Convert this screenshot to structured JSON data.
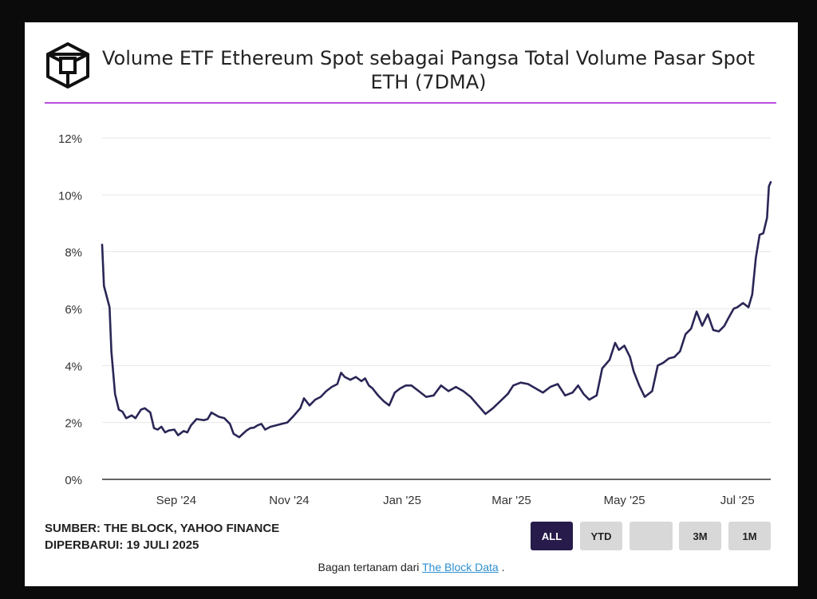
{
  "title": "Volume ETF Ethereum Spot sebagai Pangsa Total Volume Pasar Spot ETH (7DMA)",
  "footer": {
    "source": "SUMBER: THE BLOCK, YAHOO FINANCE",
    "updated": "DIPERBARUI: 19 JULI 2025",
    "embed_prefix": "Bagan tertanam dari",
    "embed_link": "The Block Data",
    "embed_suffix": "."
  },
  "range_buttons": [
    {
      "label": "ALL",
      "active": true
    },
    {
      "label": "YTD",
      "active": false
    },
    {
      "label": "",
      "active": false
    },
    {
      "label": "3M",
      "active": false
    },
    {
      "label": "1M",
      "active": false
    }
  ],
  "colors": {
    "line": "#2a2656",
    "accent_rule": "#b94fe0",
    "active_button": "#261b4b",
    "grid": "#e6e6e6"
  },
  "chart_data": {
    "type": "line",
    "title": "Volume ETF Ethereum Spot sebagai Pangsa Total Volume Pasar Spot ETH (7DMA)",
    "xlabel": "",
    "ylabel": "",
    "ylim": [
      0,
      12
    ],
    "y_ticks": [
      0,
      2,
      4,
      6,
      8,
      10,
      12
    ],
    "y_tick_labels": [
      "0%",
      "2%",
      "4%",
      "6%",
      "8%",
      "10%",
      "12%"
    ],
    "x_range": [
      "2024-07-23",
      "2025-07-19"
    ],
    "x_ticks": [
      "2024-09-01",
      "2024-11-01",
      "2025-01-01",
      "2025-03-01",
      "2025-05-01",
      "2025-07-01"
    ],
    "x_tick_labels": [
      "Sep '24",
      "Nov '24",
      "Jan '25",
      "Mar '25",
      "May '25",
      "Jul '25"
    ],
    "grid": true,
    "series": [
      {
        "x": [
          "2024-07-23",
          "2024-07-24",
          "2024-07-27",
          "2024-07-28",
          "2024-07-30",
          "2024-08-01",
          "2024-08-03",
          "2024-08-05",
          "2024-08-08",
          "2024-08-10",
          "2024-08-13",
          "2024-08-15",
          "2024-08-18",
          "2024-08-20",
          "2024-08-22",
          "2024-08-24",
          "2024-08-26",
          "2024-08-28",
          "2024-08-31",
          "2024-09-02",
          "2024-09-05",
          "2024-09-07",
          "2024-09-09",
          "2024-09-12",
          "2024-09-14",
          "2024-09-16",
          "2024-09-18",
          "2024-09-20",
          "2024-09-24",
          "2024-09-27",
          "2024-09-30",
          "2024-10-02",
          "2024-10-05",
          "2024-10-07",
          "2024-10-09",
          "2024-10-11",
          "2024-10-13",
          "2024-10-15",
          "2024-10-17",
          "2024-10-19",
          "2024-10-22",
          "2024-10-25",
          "2024-10-28",
          "2024-10-31",
          "2024-11-03",
          "2024-11-05",
          "2024-11-07",
          "2024-11-09",
          "2024-11-12",
          "2024-11-15",
          "2024-11-18",
          "2024-11-21",
          "2024-11-24",
          "2024-11-27",
          "2024-11-29",
          "2024-12-01",
          "2024-12-04",
          "2024-12-07",
          "2024-12-10",
          "2024-12-12",
          "2024-12-14",
          "2024-12-16",
          "2024-12-19",
          "2024-12-22",
          "2024-12-25",
          "2024-12-28",
          "2024-12-31",
          "2025-01-03",
          "2025-01-06",
          "2025-01-10",
          "2025-01-14",
          "2025-01-18",
          "2025-01-22",
          "2025-01-26",
          "2025-01-30",
          "2025-02-03",
          "2025-02-07",
          "2025-02-11",
          "2025-02-15",
          "2025-02-19",
          "2025-02-23",
          "2025-02-27",
          "2025-03-02",
          "2025-03-06",
          "2025-03-10",
          "2025-03-14",
          "2025-03-18",
          "2025-03-22",
          "2025-03-26",
          "2025-03-30",
          "2025-04-03",
          "2025-04-06",
          "2025-04-09",
          "2025-04-12",
          "2025-04-16",
          "2025-04-19",
          "2025-04-23",
          "2025-04-26",
          "2025-04-28",
          "2025-05-01",
          "2025-05-04",
          "2025-05-06",
          "2025-05-09",
          "2025-05-12",
          "2025-05-16",
          "2025-05-19",
          "2025-05-22",
          "2025-05-25",
          "2025-05-28",
          "2025-05-31",
          "2025-06-03",
          "2025-06-06",
          "2025-06-09",
          "2025-06-12",
          "2025-06-15",
          "2025-06-18",
          "2025-06-21",
          "2025-06-24",
          "2025-06-26",
          "2025-06-29",
          "2025-07-01",
          "2025-07-04",
          "2025-07-07",
          "2025-07-09",
          "2025-07-11",
          "2025-07-13",
          "2025-07-15",
          "2025-07-17",
          "2025-07-18",
          "2025-07-19"
        ],
        "values": [
          8.25,
          6.8,
          6.05,
          4.5,
          3.0,
          2.45,
          2.38,
          2.15,
          2.25,
          2.15,
          2.45,
          2.5,
          2.35,
          1.8,
          1.75,
          1.85,
          1.65,
          1.72,
          1.75,
          1.55,
          1.7,
          1.65,
          1.9,
          2.12,
          2.1,
          2.08,
          2.12,
          2.35,
          2.2,
          2.15,
          1.95,
          1.6,
          1.48,
          1.6,
          1.72,
          1.8,
          1.82,
          1.9,
          1.95,
          1.75,
          1.85,
          1.9,
          1.95,
          2.0,
          2.2,
          2.35,
          2.5,
          2.85,
          2.6,
          2.8,
          2.9,
          3.1,
          3.25,
          3.35,
          3.75,
          3.6,
          3.5,
          3.6,
          3.45,
          3.55,
          3.3,
          3.2,
          2.95,
          2.75,
          2.6,
          3.05,
          3.2,
          3.3,
          3.3,
          3.1,
          2.9,
          2.95,
          3.3,
          3.1,
          3.25,
          3.1,
          2.9,
          2.6,
          2.3,
          2.5,
          2.75,
          3.0,
          3.3,
          3.4,
          3.35,
          3.2,
          3.05,
          3.25,
          3.35,
          2.95,
          3.05,
          3.3,
          3.0,
          2.8,
          2.95,
          3.9,
          4.2,
          4.8,
          4.55,
          4.7,
          4.3,
          3.8,
          3.3,
          2.9,
          3.1,
          4.0,
          4.1,
          4.25,
          4.3,
          4.5,
          5.1,
          5.3,
          5.9,
          5.4,
          5.8,
          5.25,
          5.2,
          5.4,
          5.65,
          6.0,
          6.05,
          6.2,
          6.05,
          6.5,
          7.8,
          8.6,
          8.65,
          9.2,
          10.3,
          10.45
        ]
      }
    ]
  }
}
